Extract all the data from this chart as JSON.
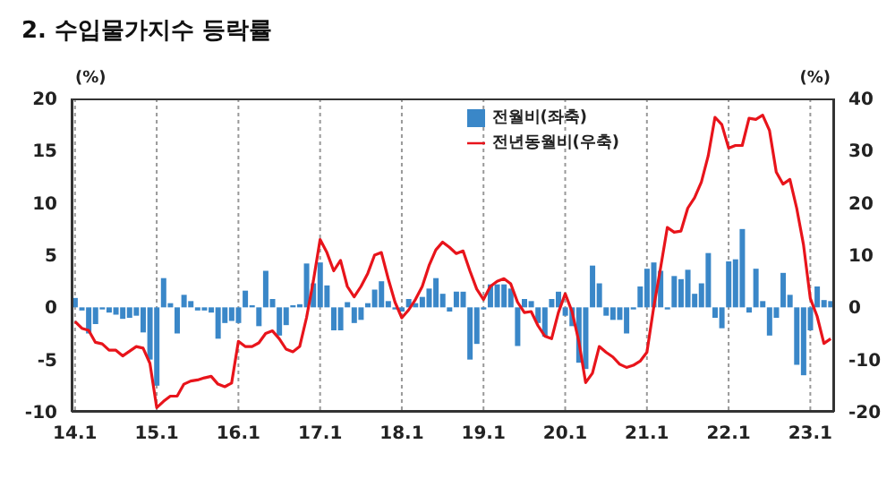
{
  "chart_data": {
    "type": "bar",
    "title": "2. 수입물가지수 등락률",
    "ylabel": "(%)",
    "y2label": "(%)",
    "categories": [
      "14.1",
      null,
      null,
      null,
      null,
      null,
      null,
      null,
      null,
      null,
      null,
      null,
      "15.1",
      null,
      null,
      null,
      null,
      null,
      null,
      null,
      null,
      null,
      null,
      null,
      "16.1",
      null,
      null,
      null,
      null,
      null,
      null,
      null,
      null,
      null,
      null,
      null,
      "17.1",
      null,
      null,
      null,
      null,
      null,
      null,
      null,
      null,
      null,
      null,
      null,
      "18.1",
      null,
      null,
      null,
      null,
      null,
      null,
      null,
      null,
      null,
      null,
      null,
      "19.1",
      null,
      null,
      null,
      null,
      null,
      null,
      null,
      null,
      null,
      null,
      null,
      "20.1",
      null,
      null,
      null,
      null,
      null,
      null,
      null,
      null,
      null,
      null,
      null,
      "21.1",
      null,
      null,
      null,
      null,
      null,
      null,
      null,
      null,
      null,
      null,
      null,
      "22.1",
      null,
      null,
      null,
      null,
      null,
      null,
      null,
      null,
      null,
      null,
      null,
      "23.1",
      null,
      null,
      null
    ],
    "series": [
      {
        "name": "전월비(좌축)",
        "color": "#3a87c8",
        "values": [
          0.9,
          -0.3,
          -2.5,
          -1.6,
          -0.2,
          -0.5,
          -0.7,
          -1.1,
          -1.0,
          -0.8,
          -2.4,
          -5.0,
          -7.5,
          2.8,
          0.4,
          -2.5,
          1.2,
          0.6,
          -0.3,
          -0.3,
          -0.5,
          -3.0,
          -1.5,
          -1.3,
          -1.5,
          1.6,
          0.2,
          -1.8,
          3.5,
          0.8,
          -2.7,
          -1.7,
          0.2,
          0.3,
          4.2,
          2.3,
          4.3,
          2.1,
          -2.2,
          -2.2,
          0.5,
          -1.5,
          -1.2,
          0.4,
          1.7,
          2.5,
          0.6,
          -0.2,
          -0.4,
          0.8,
          0.4,
          1.0,
          1.8,
          2.8,
          1.3,
          -0.4,
          1.5,
          1.5,
          -5.0,
          -3.5,
          -0.2,
          2.2,
          2.2,
          2.2,
          1.8,
          -3.7,
          0.8,
          0.6,
          -1.5,
          -2.8,
          0.8,
          1.5,
          -0.8,
          -1.8,
          -5.3,
          -5.9,
          4.0,
          2.3,
          -0.8,
          -1.2,
          -1.2,
          -2.5,
          -0.2,
          2.0,
          3.7,
          4.3,
          3.5,
          -0.2,
          3.0,
          2.7,
          3.6,
          1.3,
          2.3,
          5.2,
          -1.0,
          -2.0,
          4.4,
          4.6,
          7.5,
          -0.5,
          3.7,
          0.6,
          -2.7,
          -1.0,
          3.3,
          1.2,
          -5.5,
          -6.5,
          -2.2,
          2.0,
          0.7,
          0.6
        ]
      },
      {
        "name": "전년동월비(우축)",
        "type": "line",
        "axis": "y2",
        "color": "#e8141b",
        "values": [
          -2.7,
          -4,
          -4.4,
          -6.7,
          -7,
          -8.2,
          -8.2,
          -9.3,
          -8.4,
          -7.5,
          -7.8,
          -10.7,
          -19.2,
          -18,
          -17,
          -17,
          -14.7,
          -14.1,
          -13.9,
          -13.5,
          -13.2,
          -14.7,
          -15.2,
          -14.5,
          -6.5,
          -7.5,
          -7.5,
          -6.8,
          -5,
          -4.5,
          -6,
          -8,
          -8.5,
          -7.5,
          -2,
          5,
          13,
          10.5,
          7,
          9,
          4,
          2,
          4,
          6.5,
          10,
          10.5,
          5.5,
          1,
          -2,
          -0.5,
          1.5,
          4,
          8,
          11,
          12.5,
          11.5,
          10.3,
          10.8,
          7,
          3.5,
          1.5,
          4,
          5,
          5.5,
          4.5,
          1,
          -1,
          -0.8,
          -3.5,
          -5.5,
          -6,
          -1,
          2.6,
          -0.8,
          -6.5,
          -14.4,
          -12.6,
          -7.5,
          -8.6,
          -9.5,
          -10.9,
          -11.5,
          -11.1,
          -10.3,
          -8.6,
          0,
          7.5,
          15.3,
          14.4,
          14.6,
          19,
          21,
          24,
          29,
          36.4,
          35,
          30.5,
          31,
          31,
          36.2,
          36,
          36.8,
          33.9,
          25.9,
          23.6,
          24.5,
          19,
          12,
          1.7,
          -1.7,
          -6.9,
          -6
        ]
      }
    ],
    "ylim": [
      -10,
      20
    ],
    "yticks": [
      -10,
      -5,
      0,
      5,
      10,
      15,
      20
    ],
    "y2lim": [
      -20,
      40
    ],
    "y2ticks": [
      -20,
      -10,
      0,
      10,
      20,
      30,
      40
    ],
    "grid": "x",
    "legend": "top right"
  }
}
